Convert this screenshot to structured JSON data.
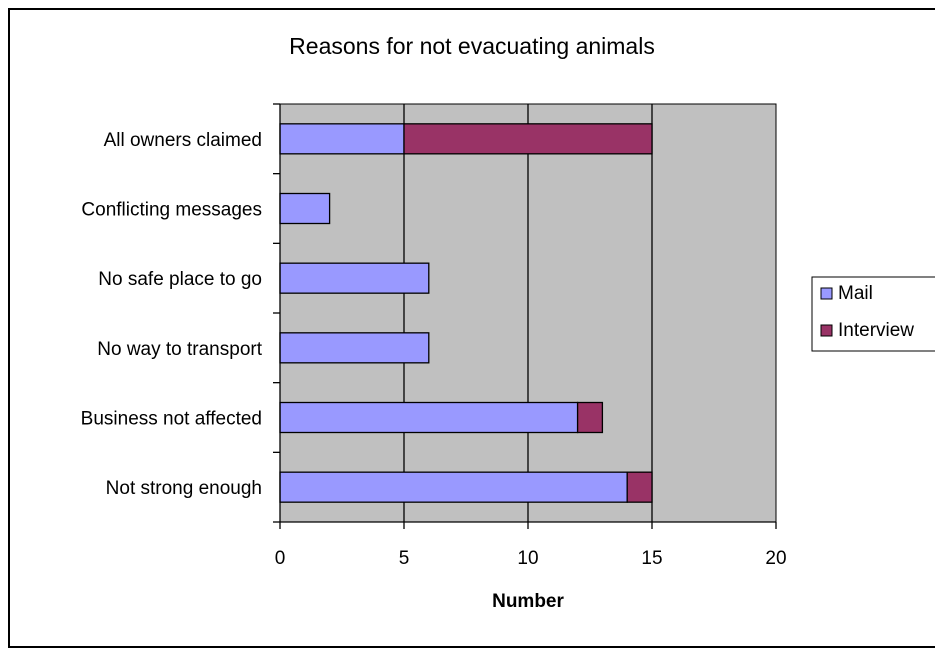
{
  "chart_data": {
    "type": "bar",
    "orientation": "horizontal",
    "stacked": true,
    "title": "Reasons for not evacuating animals",
    "xlabel": "Number",
    "ylabel": "",
    "xlim": [
      0,
      20
    ],
    "x_ticks": [
      "0",
      "5",
      "10",
      "15",
      "20"
    ],
    "categories": [
      "All owners claimed",
      "Conflicting messages",
      "No safe place to go",
      "No way to transport",
      "Business not affected",
      "Not strong enough"
    ],
    "series": [
      {
        "name": "Mail",
        "color": "#9999ff",
        "values": [
          5,
          2,
          6,
          6,
          12,
          14
        ]
      },
      {
        "name": "Interview",
        "color": "#993366",
        "values": [
          10,
          0,
          0,
          0,
          1,
          1
        ]
      }
    ],
    "plot_background": "#c0c0c0",
    "grid": "vertical major gridlines",
    "legend_position": "right"
  }
}
